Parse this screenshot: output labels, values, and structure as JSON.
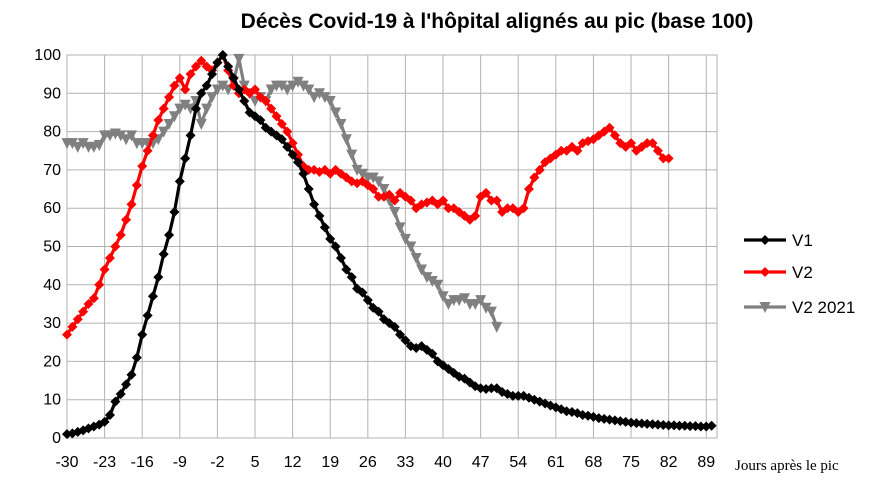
{
  "chart_data": {
    "type": "line",
    "title": "Décès Covid-19 à l'hôpital alignés au pic (base 100)",
    "xlabel": "Jours après le pic",
    "ylabel": "",
    "xlim": [
      -30,
      91
    ],
    "ylim": [
      0,
      100
    ],
    "xticks": [
      -30,
      -23,
      -16,
      -9,
      -2,
      5,
      12,
      19,
      26,
      33,
      40,
      47,
      54,
      61,
      68,
      75,
      82,
      89
    ],
    "yticks": [
      0,
      10,
      20,
      30,
      40,
      50,
      60,
      70,
      80,
      90,
      100
    ],
    "grid": "both",
    "legend_position": "right",
    "series": [
      {
        "name": "V1",
        "color": "#000000",
        "marker": "diamond",
        "points": [
          [
            -30,
            1
          ],
          [
            -29,
            1.2
          ],
          [
            -28,
            1.6
          ],
          [
            -27,
            2
          ],
          [
            -26,
            2.5
          ],
          [
            -25,
            3
          ],
          [
            -24,
            3.5
          ],
          [
            -23,
            4.2
          ],
          [
            -22,
            6
          ],
          [
            -21,
            9.5
          ],
          [
            -20,
            11.5
          ],
          [
            -19,
            14
          ],
          [
            -18,
            16.5
          ],
          [
            -17,
            21
          ],
          [
            -16,
            27
          ],
          [
            -15,
            32
          ],
          [
            -14,
            37
          ],
          [
            -13,
            42
          ],
          [
            -12,
            48
          ],
          [
            -11,
            53
          ],
          [
            -10,
            59
          ],
          [
            -9,
            67
          ],
          [
            -8,
            73
          ],
          [
            -7,
            79
          ],
          [
            -6,
            86
          ],
          [
            -5,
            90
          ],
          [
            -4,
            92
          ],
          [
            -3,
            95
          ],
          [
            -2,
            98
          ],
          [
            -1,
            100
          ],
          [
            0,
            97
          ],
          [
            1,
            94
          ],
          [
            2,
            91
          ],
          [
            3,
            88
          ],
          [
            4,
            85
          ],
          [
            5,
            84
          ],
          [
            6,
            83
          ],
          [
            7,
            81
          ],
          [
            8,
            80
          ],
          [
            9,
            79
          ],
          [
            10,
            78
          ],
          [
            11,
            76
          ],
          [
            12,
            74
          ],
          [
            13,
            72
          ],
          [
            14,
            69
          ],
          [
            15,
            65
          ],
          [
            16,
            61
          ],
          [
            17,
            58
          ],
          [
            18,
            55
          ],
          [
            19,
            52
          ],
          [
            20,
            50
          ],
          [
            21,
            47
          ],
          [
            22,
            44
          ],
          [
            23,
            42
          ],
          [
            24,
            39
          ],
          [
            25,
            38
          ],
          [
            26,
            36
          ],
          [
            27,
            34
          ],
          [
            28,
            33
          ],
          [
            29,
            31
          ],
          [
            30,
            30
          ],
          [
            31,
            29
          ],
          [
            32,
            27
          ],
          [
            33,
            25.5
          ],
          [
            34,
            24
          ],
          [
            35,
            23.5
          ],
          [
            36,
            24
          ],
          [
            37,
            23
          ],
          [
            38,
            22
          ],
          [
            39,
            20
          ],
          [
            40,
            19
          ],
          [
            41,
            18
          ],
          [
            42,
            17
          ],
          [
            43,
            16
          ],
          [
            44,
            15.5
          ],
          [
            45,
            14.5
          ],
          [
            46,
            13.5
          ],
          [
            47,
            13
          ],
          [
            48,
            12.8
          ],
          [
            49,
            13
          ],
          [
            50,
            13
          ],
          [
            51,
            12
          ],
          [
            52,
            11.5
          ],
          [
            53,
            11
          ],
          [
            54,
            11
          ],
          [
            55,
            11
          ],
          [
            56,
            10.5
          ],
          [
            57,
            10
          ],
          [
            58,
            9.5
          ],
          [
            59,
            9
          ],
          [
            60,
            8.5
          ],
          [
            61,
            8
          ],
          [
            62,
            7.5
          ],
          [
            63,
            7
          ],
          [
            64,
            6.8
          ],
          [
            65,
            6.5
          ],
          [
            66,
            6
          ],
          [
            67,
            5.8
          ],
          [
            68,
            5.5
          ],
          [
            69,
            5.2
          ],
          [
            70,
            5
          ],
          [
            71,
            4.8
          ],
          [
            72,
            4.6
          ],
          [
            73,
            4.4
          ],
          [
            74,
            4.2
          ],
          [
            75,
            4
          ],
          [
            76,
            3.9
          ],
          [
            77,
            3.8
          ],
          [
            78,
            3.7
          ],
          [
            79,
            3.6
          ],
          [
            80,
            3.5
          ],
          [
            81,
            3.4
          ],
          [
            82,
            3.3
          ],
          [
            83,
            3.3
          ],
          [
            84,
            3.2
          ],
          [
            85,
            3.2
          ],
          [
            86,
            3.1
          ],
          [
            87,
            3.1
          ],
          [
            88,
            3
          ],
          [
            89,
            3
          ],
          [
            90,
            3.2
          ]
        ]
      },
      {
        "name": "V2",
        "color": "#ff0000",
        "marker": "diamond",
        "points": [
          [
            -30,
            27
          ],
          [
            -29,
            29
          ],
          [
            -28,
            31
          ],
          [
            -27,
            33
          ],
          [
            -26,
            35
          ],
          [
            -25,
            36.5
          ],
          [
            -24,
            40
          ],
          [
            -23,
            44
          ],
          [
            -22,
            47
          ],
          [
            -21,
            50
          ],
          [
            -20,
            53
          ],
          [
            -19,
            57
          ],
          [
            -18,
            61
          ],
          [
            -17,
            66
          ],
          [
            -16,
            71
          ],
          [
            -15,
            75
          ],
          [
            -14,
            79
          ],
          [
            -13,
            83
          ],
          [
            -12,
            86
          ],
          [
            -11,
            89
          ],
          [
            -10,
            92
          ],
          [
            -9,
            94
          ],
          [
            -8,
            91
          ],
          [
            -7,
            95
          ],
          [
            -6,
            97
          ],
          [
            -5,
            98.5
          ],
          [
            -4,
            97
          ],
          [
            -3,
            96
          ],
          [
            -2,
            98
          ],
          [
            -1,
            100
          ],
          [
            0,
            96
          ],
          [
            1,
            92
          ],
          [
            2,
            90
          ],
          [
            3,
            91
          ],
          [
            4,
            90
          ],
          [
            5,
            91
          ],
          [
            6,
            89
          ],
          [
            7,
            88
          ],
          [
            8,
            86
          ],
          [
            9,
            84
          ],
          [
            10,
            82
          ],
          [
            11,
            80
          ],
          [
            12,
            77
          ],
          [
            13,
            74
          ],
          [
            14,
            71
          ],
          [
            15,
            70
          ],
          [
            16,
            70
          ],
          [
            17,
            69.5
          ],
          [
            18,
            70
          ],
          [
            19,
            69
          ],
          [
            20,
            70
          ],
          [
            21,
            69
          ],
          [
            22,
            68
          ],
          [
            23,
            67
          ],
          [
            24,
            66.5
          ],
          [
            25,
            67
          ],
          [
            26,
            66
          ],
          [
            27,
            65
          ],
          [
            28,
            63
          ],
          [
            29,
            63
          ],
          [
            30,
            63.5
          ],
          [
            31,
            62
          ],
          [
            32,
            64
          ],
          [
            33,
            63
          ],
          [
            34,
            62
          ],
          [
            35,
            60
          ],
          [
            36,
            61
          ],
          [
            37,
            61.5
          ],
          [
            38,
            62
          ],
          [
            39,
            61
          ],
          [
            40,
            62
          ],
          [
            41,
            60
          ],
          [
            42,
            60
          ],
          [
            43,
            59
          ],
          [
            44,
            58
          ],
          [
            45,
            57
          ],
          [
            46,
            58
          ],
          [
            47,
            63
          ],
          [
            48,
            64
          ],
          [
            49,
            62
          ],
          [
            50,
            62
          ],
          [
            51,
            59
          ],
          [
            52,
            60
          ],
          [
            53,
            60
          ],
          [
            54,
            59
          ],
          [
            55,
            60
          ],
          [
            56,
            65
          ],
          [
            57,
            68
          ],
          [
            58,
            70
          ],
          [
            59,
            72
          ],
          [
            60,
            73
          ],
          [
            61,
            74
          ],
          [
            62,
            75
          ],
          [
            63,
            75
          ],
          [
            64,
            76
          ],
          [
            65,
            75
          ],
          [
            66,
            77
          ],
          [
            67,
            77.5
          ],
          [
            68,
            78
          ],
          [
            69,
            79
          ],
          [
            70,
            80
          ],
          [
            71,
            81
          ],
          [
            72,
            79
          ],
          [
            73,
            77
          ],
          [
            74,
            76
          ],
          [
            75,
            77
          ],
          [
            76,
            75
          ],
          [
            77,
            76
          ],
          [
            78,
            77
          ],
          [
            79,
            77
          ],
          [
            80,
            75
          ],
          [
            81,
            73
          ],
          [
            82,
            73
          ]
        ]
      },
      {
        "name": "V2 2021",
        "color": "#808080",
        "marker": "triangle-down",
        "points": [
          [
            -30,
            77
          ],
          [
            -29,
            77
          ],
          [
            -28,
            76
          ],
          [
            -27,
            77
          ],
          [
            -26,
            76
          ],
          [
            -25,
            76
          ],
          [
            -24,
            76.5
          ],
          [
            -23,
            79
          ],
          [
            -22,
            79
          ],
          [
            -21,
            79.5
          ],
          [
            -20,
            79
          ],
          [
            -19,
            78
          ],
          [
            -18,
            79
          ],
          [
            -17,
            77
          ],
          [
            -16,
            77
          ],
          [
            -15,
            77
          ],
          [
            -14,
            77
          ],
          [
            -13,
            78
          ],
          [
            -12,
            80
          ],
          [
            -11,
            82
          ],
          [
            -10,
            84
          ],
          [
            -9,
            86
          ],
          [
            -8,
            87
          ],
          [
            -7,
            86
          ],
          [
            -6,
            88
          ],
          [
            -5,
            82
          ],
          [
            -4,
            86
          ],
          [
            -3,
            89
          ],
          [
            -2,
            91
          ],
          [
            -1,
            92
          ],
          [
            0,
            91
          ],
          [
            1,
            93
          ],
          [
            2,
            99
          ],
          [
            3,
            92
          ],
          [
            4,
            90
          ],
          [
            5,
            88
          ],
          [
            6,
            89
          ],
          [
            7,
            88
          ],
          [
            8,
            91
          ],
          [
            9,
            92
          ],
          [
            10,
            92
          ],
          [
            11,
            91
          ],
          [
            12,
            92
          ],
          [
            13,
            93
          ],
          [
            14,
            92
          ],
          [
            15,
            91
          ],
          [
            16,
            89
          ],
          [
            17,
            90
          ],
          [
            18,
            89
          ],
          [
            19,
            88
          ],
          [
            20,
            85
          ],
          [
            21,
            82
          ],
          [
            22,
            78
          ],
          [
            23,
            74
          ],
          [
            24,
            70
          ],
          [
            25,
            69
          ],
          [
            26,
            68
          ],
          [
            27,
            68
          ],
          [
            28,
            67
          ],
          [
            29,
            65
          ],
          [
            30,
            62
          ],
          [
            31,
            59
          ],
          [
            32,
            55
          ],
          [
            33,
            52
          ],
          [
            34,
            50
          ],
          [
            35,
            47
          ],
          [
            36,
            44
          ],
          [
            37,
            42
          ],
          [
            38,
            41
          ],
          [
            39,
            40
          ],
          [
            40,
            37
          ],
          [
            41,
            35
          ],
          [
            42,
            36
          ],
          [
            43,
            36
          ],
          [
            44,
            36.5
          ],
          [
            45,
            35
          ],
          [
            46,
            35
          ],
          [
            47,
            36
          ],
          [
            48,
            34
          ],
          [
            49,
            33
          ],
          [
            50,
            29
          ]
        ]
      }
    ]
  }
}
